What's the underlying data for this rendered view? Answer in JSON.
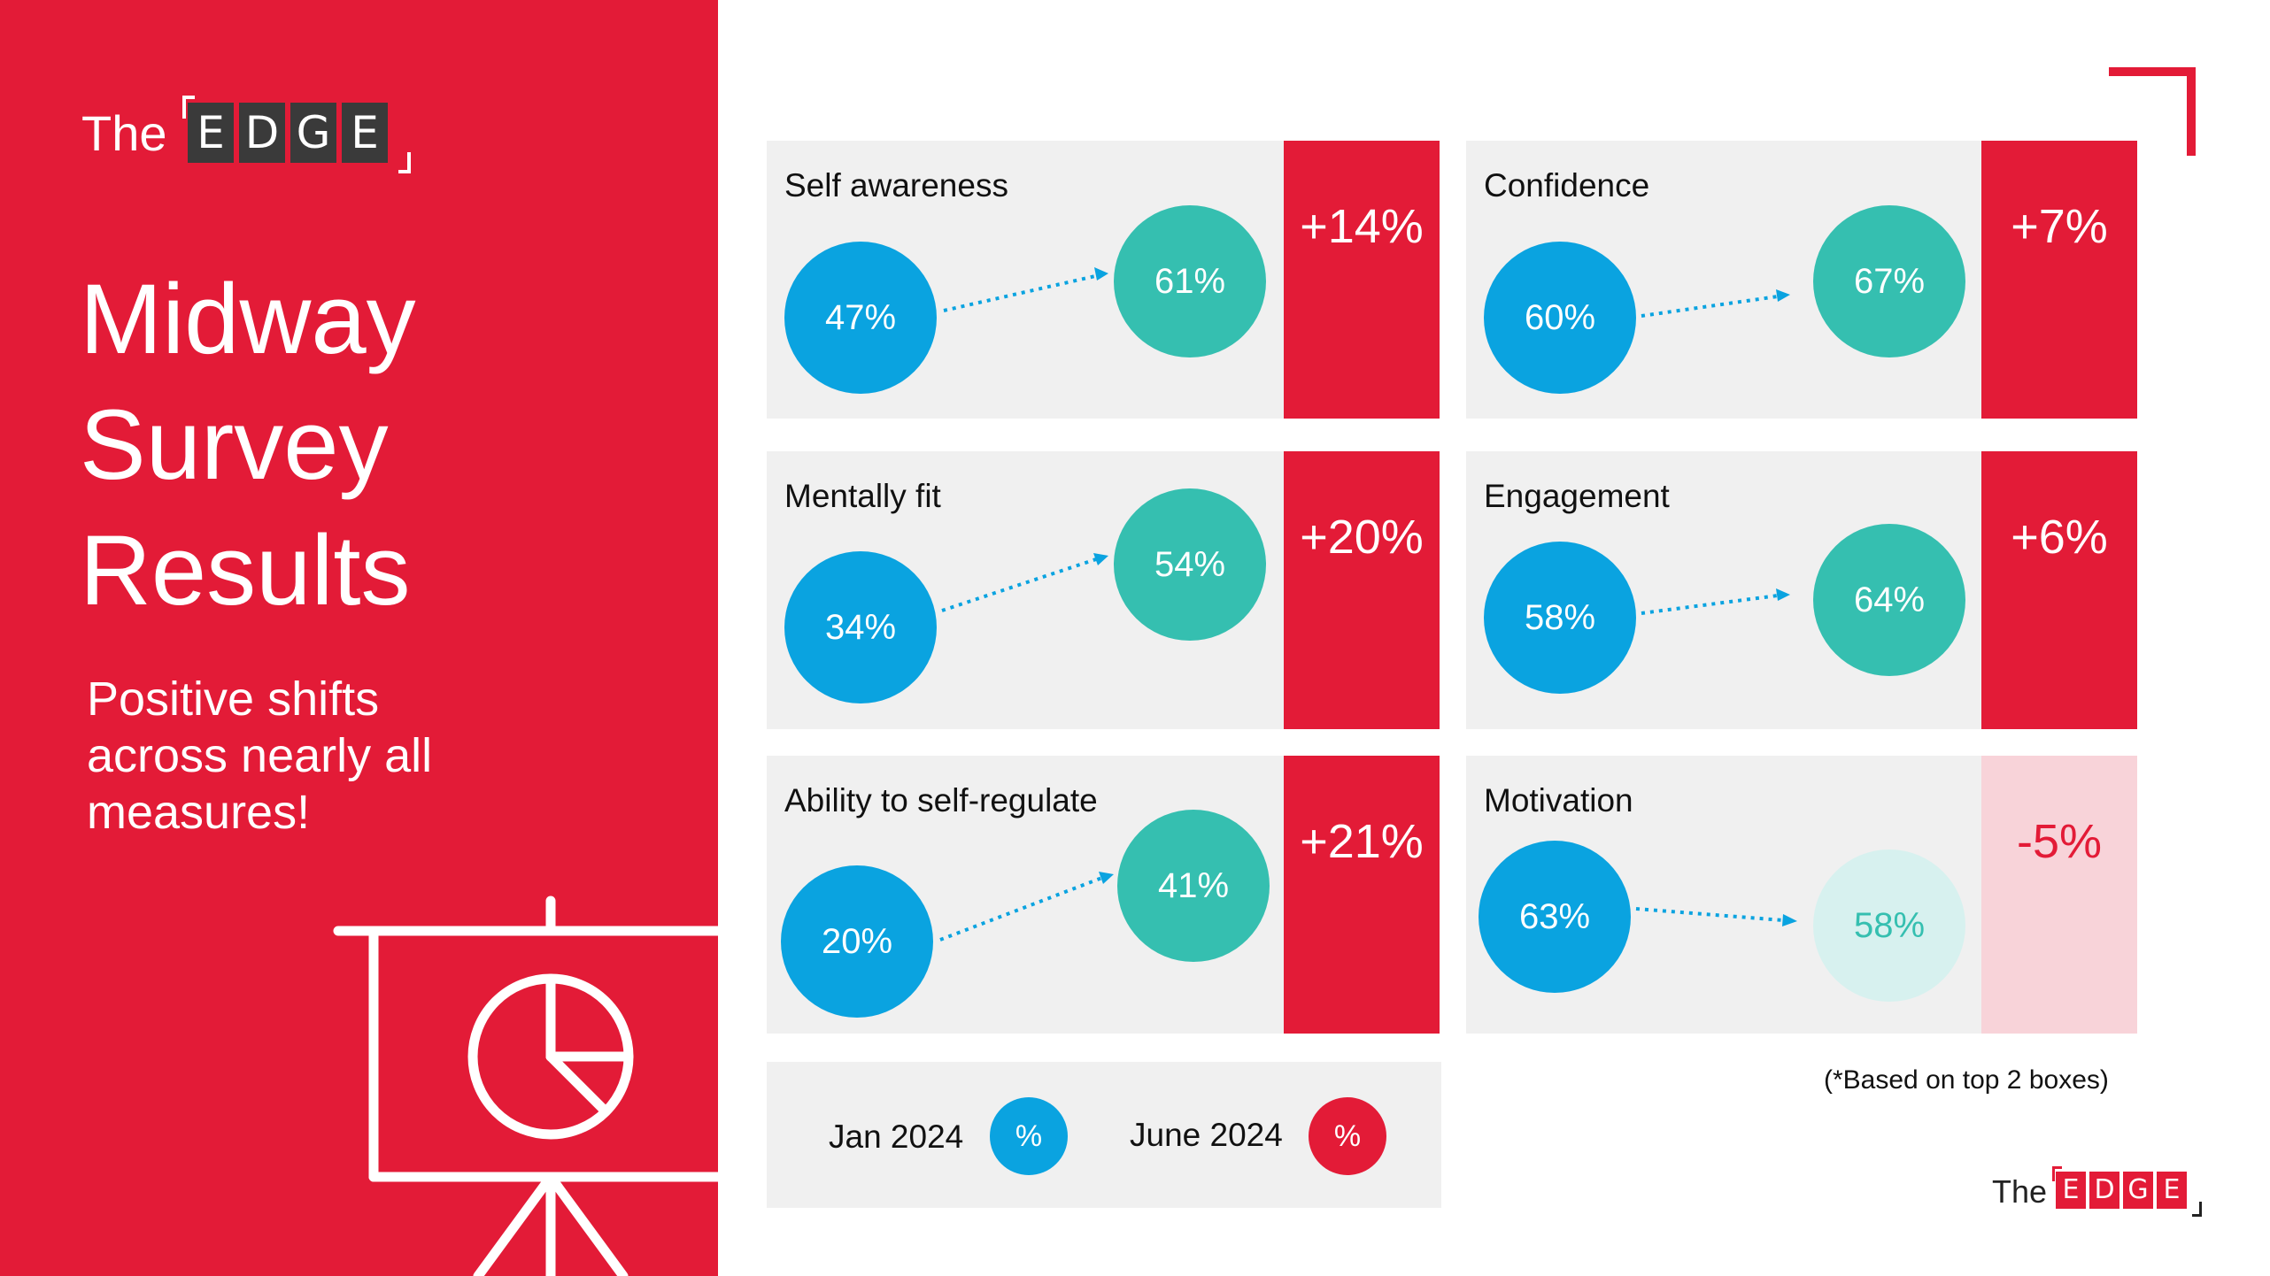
{
  "logo": {
    "prefix": "The",
    "letters": [
      "E",
      "D",
      "G",
      "E"
    ]
  },
  "title_lines": [
    "Midway",
    "Survey",
    "Results"
  ],
  "subtitle_lines": [
    "Positive shifts",
    "across nearly all",
    "measures!"
  ],
  "panels": [
    {
      "label": "Self awareness",
      "jan": "47%",
      "june": "61%",
      "delta": "+14%"
    },
    {
      "label": "Confidence",
      "jan": "60%",
      "june": "67%",
      "delta": "+7%"
    },
    {
      "label": "Mentally fit",
      "jan": "34%",
      "june": "54%",
      "delta": "+20%"
    },
    {
      "label": "Engagement",
      "jan": "58%",
      "june": "64%",
      "delta": "+6%"
    },
    {
      "label": "Ability to self-regulate",
      "jan": "20%",
      "june": "41%",
      "delta": "+21%"
    },
    {
      "label": "Motivation",
      "jan": "63%",
      "june": "58%",
      "delta": "-5%"
    }
  ],
  "legend": {
    "jan_label": "Jan 2024",
    "jan_symbol": "%",
    "june_label": "June 2024",
    "june_symbol": "%"
  },
  "footnote": "(*Based on top 2 boxes)",
  "colors": {
    "brand_red": "#e31b37",
    "jan_blue": "#0aa3e0",
    "june_teal": "#35bfb0",
    "panel_gray": "#f0f0f0",
    "logo_dark": "#3a3a3a",
    "negative_pink": "#f8d3d9",
    "faded_teal": "#d7f1ef"
  },
  "icons": {
    "presentation": "presentation-board-pie-chart-icon",
    "corner": "corner-bracket-icon"
  }
}
